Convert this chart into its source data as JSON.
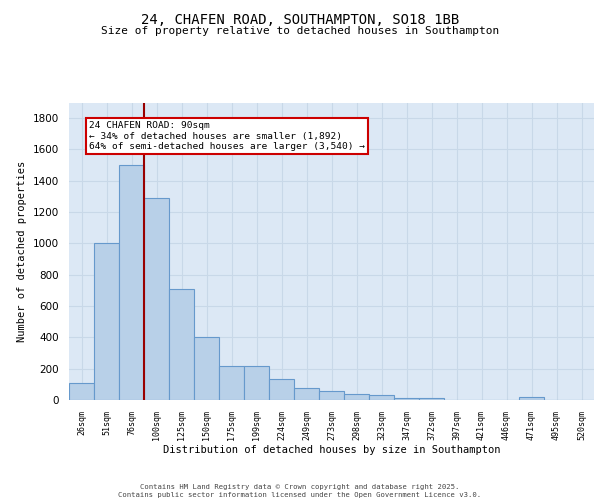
{
  "title": "24, CHAFEN ROAD, SOUTHAMPTON, SO18 1BB",
  "subtitle": "Size of property relative to detached houses in Southampton",
  "xlabel": "Distribution of detached houses by size in Southampton",
  "ylabel": "Number of detached properties",
  "categories": [
    "26sqm",
    "51sqm",
    "76sqm",
    "100sqm",
    "125sqm",
    "150sqm",
    "175sqm",
    "199sqm",
    "224sqm",
    "249sqm",
    "273sqm",
    "298sqm",
    "323sqm",
    "347sqm",
    "372sqm",
    "397sqm",
    "421sqm",
    "446sqm",
    "471sqm",
    "495sqm",
    "520sqm"
  ],
  "values": [
    110,
    1000,
    1500,
    1290,
    710,
    405,
    215,
    215,
    135,
    75,
    60,
    40,
    30,
    15,
    15,
    0,
    0,
    0,
    20,
    0,
    0
  ],
  "bar_color": "#b8d0e8",
  "bar_edge_color": "#6699cc",
  "background_color": "#dce8f5",
  "grid_color": "#c8d8e8",
  "property_line_color": "#990000",
  "annotation_text": "24 CHAFEN ROAD: 90sqm\n← 34% of detached houses are smaller (1,892)\n64% of semi-detached houses are larger (3,540) →",
  "annotation_box_color": "#ffffff",
  "annotation_box_edge": "#cc0000",
  "ylim": [
    0,
    1900
  ],
  "yticks": [
    0,
    200,
    400,
    600,
    800,
    1000,
    1200,
    1400,
    1600,
    1800
  ],
  "footer_line1": "Contains HM Land Registry data © Crown copyright and database right 2025.",
  "footer_line2": "Contains public sector information licensed under the Open Government Licence v3.0."
}
